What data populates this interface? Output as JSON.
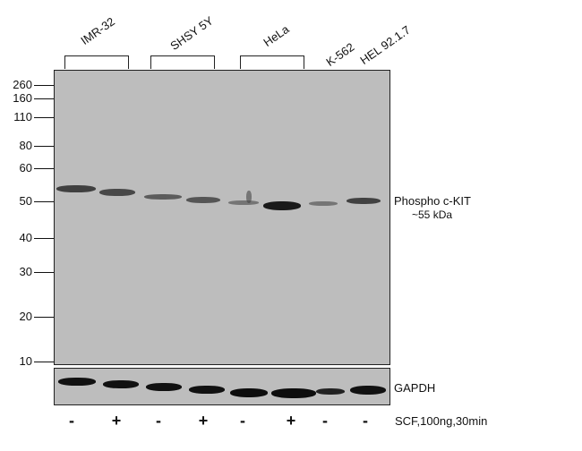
{
  "cell_lines": [
    "IMR-32",
    "SHSY 5Y",
    "HeLa",
    "K-562",
    "HEL 92.1.7"
  ],
  "mw_markers": [
    "260",
    "160",
    "110",
    "80",
    "60",
    "50",
    "40",
    "30",
    "20",
    "10"
  ],
  "target_label": "Phospho c-KIT",
  "target_size": "~55 kDa",
  "loading_control": "GAPDH",
  "treatments": [
    "-",
    "+",
    "-",
    "+",
    "-",
    "+",
    "-",
    "-"
  ],
  "treatment_label": "SCF,100ng,30min"
}
